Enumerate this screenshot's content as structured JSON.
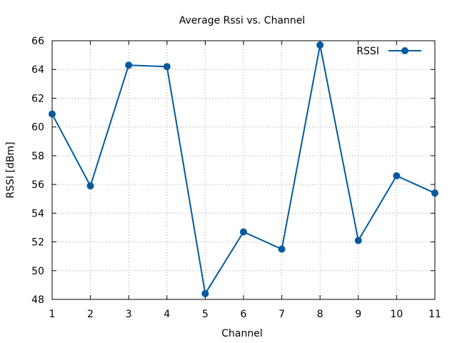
{
  "chart_data": {
    "type": "line",
    "title": "Average Rssi vs. Channel",
    "xlabel": "Channel",
    "ylabel": "RSSI [dBm]",
    "x": [
      1,
      2,
      3,
      4,
      5,
      6,
      7,
      8,
      9,
      10,
      11
    ],
    "xlim": [
      1,
      11
    ],
    "ylim": [
      48,
      66
    ],
    "x_ticks": [
      "1",
      "2",
      "3",
      "4",
      "5",
      "6",
      "7",
      "8",
      "9",
      "10",
      "11"
    ],
    "y_ticks": [
      "48",
      "50",
      "52",
      "54",
      "56",
      "58",
      "60",
      "62",
      "64",
      "66"
    ],
    "grid": true,
    "legend_position": "top-right",
    "series": [
      {
        "name": "RSSI",
        "color": "#005a9e",
        "marker": "circle",
        "values": [
          60.9,
          55.9,
          64.3,
          64.2,
          48.4,
          52.7,
          51.5,
          65.7,
          52.1,
          56.6,
          55.4
        ]
      }
    ]
  }
}
